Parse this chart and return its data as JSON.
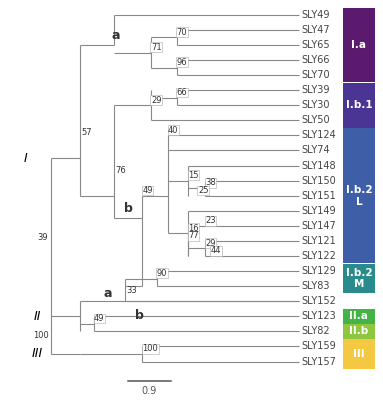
{
  "taxa": [
    "SLY49",
    "SLY47",
    "SLY65",
    "SLY66",
    "SLY70",
    "SLY39",
    "SLY30",
    "SLY50",
    "SLY124",
    "SLY74",
    "SLY148",
    "SLY150",
    "SLY151",
    "SLY149",
    "SLY147",
    "SLY121",
    "SLY122",
    "SLY129",
    "SLY83",
    "SLY152",
    "SLY123",
    "SLY82",
    "SLY159",
    "SLY157"
  ],
  "clades": [
    {
      "label": "I.a",
      "color": "#5c1a6e",
      "taxa": [
        "SLY49",
        "SLY47",
        "SLY65",
        "SLY66",
        "SLY70"
      ]
    },
    {
      "label": "I.b.1",
      "color": "#4b3594",
      "taxa": [
        "SLY39",
        "SLY30",
        "SLY50"
      ]
    },
    {
      "label": "I.b.2\nL",
      "color": "#3e5fa8",
      "taxa": [
        "SLY124",
        "SLY74",
        "SLY148",
        "SLY150",
        "SLY151",
        "SLY149",
        "SLY147",
        "SLY121",
        "SLY122"
      ]
    },
    {
      "label": "I.b.2\nM",
      "color": "#2a8b8c",
      "taxa": [
        "SLY129",
        "SLY83"
      ]
    },
    {
      "label": "II.a",
      "color": "#44b244",
      "taxa": [
        "SLY123"
      ]
    },
    {
      "label": "II.b",
      "color": "#8ec63f",
      "taxa": [
        "SLY82"
      ]
    },
    {
      "label": "III",
      "color": "#f5c842",
      "taxa": [
        "SLY159",
        "SLY157"
      ]
    }
  ],
  "line_color": "#888888",
  "bootstrap_fontsize": 6.0,
  "label_fontsize": 7.0,
  "clade_label_fontsize": 7.5
}
